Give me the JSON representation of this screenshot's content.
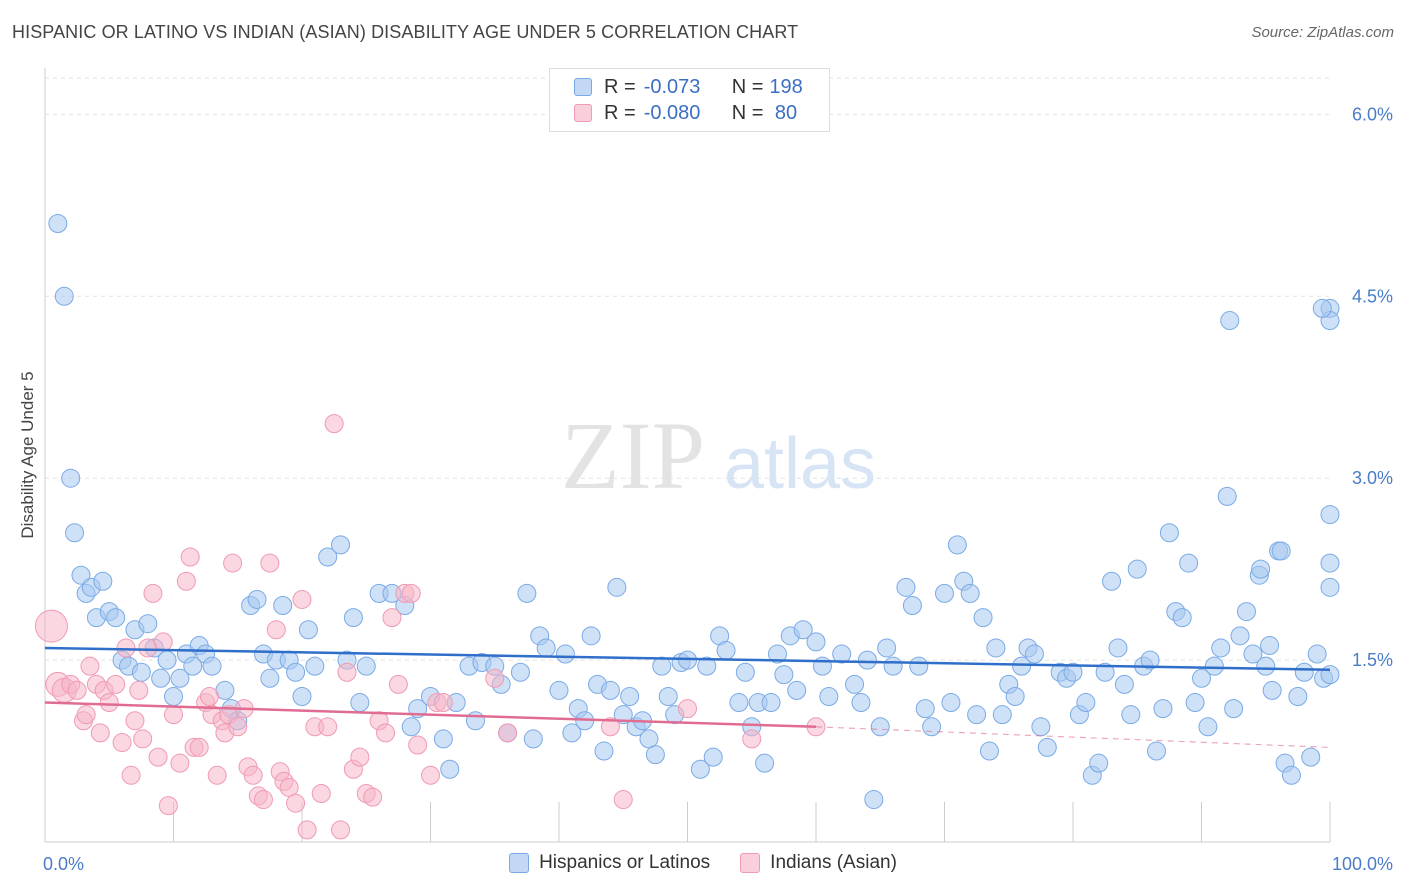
{
  "header": {
    "title": "HISPANIC OR LATINO VS INDIAN (ASIAN) DISABILITY AGE UNDER 5 CORRELATION CHART",
    "source": "Source: ZipAtlas.com"
  },
  "watermark": {
    "zip": "ZIP",
    "atlas": "atlas"
  },
  "legend": {
    "rows": [
      {
        "r_label": "R = ",
        "r_value": "-0.073",
        "n_label": "N = ",
        "n_value": "198",
        "color": "#a8c8f0"
      },
      {
        "r_label": "R = ",
        "r_value": "-0.080",
        "n_label": "N = ",
        "n_value": " 80",
        "color": "#f5b6c8"
      }
    ]
  },
  "chart_data": {
    "type": "scatter",
    "ylabel": "Disability Age Under 5",
    "xlim": [
      0,
      100
    ],
    "ylim": [
      0,
      6.0
    ],
    "x_tick_labels": [
      "0.0%",
      "100.0%"
    ],
    "y_ticks": [
      1.5,
      3.0,
      4.5,
      6.0
    ],
    "y_tick_labels": [
      "1.5%",
      "3.0%",
      "4.5%",
      "6.0%"
    ],
    "grid": true,
    "series": [
      {
        "name": "Hispanics or Latinos",
        "color": "#7aaae6",
        "fill": "#a8c8f0",
        "trend": {
          "x": [
            0,
            100
          ],
          "y": [
            1.6,
            1.42
          ],
          "line_color": "#2f6fca"
        },
        "points": [
          [
            1,
            5.1
          ],
          [
            1.5,
            4.5
          ],
          [
            2,
            3.0
          ],
          [
            2.3,
            2.55
          ],
          [
            2.8,
            2.2
          ],
          [
            3.2,
            2.05
          ],
          [
            3.6,
            2.1
          ],
          [
            4,
            1.85
          ],
          [
            4.5,
            2.15
          ],
          [
            5,
            1.9
          ],
          [
            5.5,
            1.85
          ],
          [
            6,
            1.5
          ],
          [
            6.5,
            1.45
          ],
          [
            7,
            1.75
          ],
          [
            7.5,
            1.4
          ],
          [
            8,
            1.8
          ],
          [
            8.5,
            1.6
          ],
          [
            9,
            1.35
          ],
          [
            9.5,
            1.5
          ],
          [
            10,
            1.2
          ],
          [
            10.5,
            1.35
          ],
          [
            11,
            1.55
          ],
          [
            11.5,
            1.45
          ],
          [
            12,
            1.62
          ],
          [
            12.5,
            1.55
          ],
          [
            13,
            1.45
          ],
          [
            14,
            1.25
          ],
          [
            14.5,
            1.1
          ],
          [
            15,
            1.0
          ],
          [
            16,
            1.95
          ],
          [
            16.5,
            2.0
          ],
          [
            17,
            1.55
          ],
          [
            17.5,
            1.35
          ],
          [
            18,
            1.5
          ],
          [
            18.5,
            1.95
          ],
          [
            19,
            1.5
          ],
          [
            19.5,
            1.4
          ],
          [
            20,
            1.2
          ],
          [
            20.5,
            1.75
          ],
          [
            21,
            1.45
          ],
          [
            22,
            2.35
          ],
          [
            23,
            2.45
          ],
          [
            23.5,
            1.5
          ],
          [
            24,
            1.85
          ],
          [
            24.5,
            1.15
          ],
          [
            25,
            1.45
          ],
          [
            26,
            2.05
          ],
          [
            27,
            2.05
          ],
          [
            28,
            1.95
          ],
          [
            28.5,
            0.95
          ],
          [
            29,
            1.1
          ],
          [
            30,
            1.2
          ],
          [
            31,
            0.85
          ],
          [
            31.5,
            0.6
          ],
          [
            32,
            1.15
          ],
          [
            33,
            1.45
          ],
          [
            33.5,
            1.0
          ],
          [
            34,
            1.48
          ],
          [
            35,
            1.45
          ],
          [
            35.5,
            1.3
          ],
          [
            36,
            0.9
          ],
          [
            37,
            1.4
          ],
          [
            37.5,
            2.05
          ],
          [
            38,
            0.85
          ],
          [
            38.5,
            1.7
          ],
          [
            39,
            1.6
          ],
          [
            40,
            1.25
          ],
          [
            40.5,
            1.55
          ],
          [
            41,
            0.9
          ],
          [
            41.5,
            1.1
          ],
          [
            42,
            1.0
          ],
          [
            42.5,
            1.7
          ],
          [
            43,
            1.3
          ],
          [
            43.5,
            0.75
          ],
          [
            44,
            1.25
          ],
          [
            44.5,
            2.1
          ],
          [
            45,
            1.05
          ],
          [
            45.5,
            1.2
          ],
          [
            46,
            0.95
          ],
          [
            46.5,
            1.0
          ],
          [
            47,
            0.85
          ],
          [
            47.5,
            0.72
          ],
          [
            48,
            1.45
          ],
          [
            48.5,
            1.2
          ],
          [
            49,
            1.05
          ],
          [
            49.5,
            1.48
          ],
          [
            50,
            1.5
          ],
          [
            51,
            0.6
          ],
          [
            51.5,
            1.45
          ],
          [
            52,
            0.7
          ],
          [
            52.5,
            1.7
          ],
          [
            53,
            1.58
          ],
          [
            54,
            1.15
          ],
          [
            54.5,
            1.4
          ],
          [
            55,
            0.95
          ],
          [
            55.5,
            1.15
          ],
          [
            56,
            0.65
          ],
          [
            56.5,
            1.15
          ],
          [
            57,
            1.55
          ],
          [
            57.5,
            1.38
          ],
          [
            58,
            1.7
          ],
          [
            58.5,
            1.25
          ],
          [
            59,
            1.75
          ],
          [
            60,
            1.65
          ],
          [
            60.5,
            1.45
          ],
          [
            61,
            1.2
          ],
          [
            62,
            1.55
          ],
          [
            63,
            1.3
          ],
          [
            63.5,
            1.15
          ],
          [
            64,
            1.5
          ],
          [
            64.5,
            0.35
          ],
          [
            65,
            0.95
          ],
          [
            65.5,
            1.6
          ],
          [
            66,
            1.45
          ],
          [
            67,
            2.1
          ],
          [
            67.5,
            1.95
          ],
          [
            68,
            1.45
          ],
          [
            68.5,
            1.1
          ],
          [
            69,
            0.95
          ],
          [
            70,
            2.05
          ],
          [
            70.5,
            1.15
          ],
          [
            71,
            2.45
          ],
          [
            71.5,
            2.15
          ],
          [
            72,
            2.05
          ],
          [
            72.5,
            1.05
          ],
          [
            73,
            1.85
          ],
          [
            73.5,
            0.75
          ],
          [
            74,
            1.6
          ],
          [
            74.5,
            1.05
          ],
          [
            75,
            1.3
          ],
          [
            75.5,
            1.2
          ],
          [
            76,
            1.45
          ],
          [
            76.5,
            1.6
          ],
          [
            77,
            1.55
          ],
          [
            77.5,
            0.95
          ],
          [
            78,
            0.78
          ],
          [
            79,
            1.4
          ],
          [
            79.5,
            1.35
          ],
          [
            80,
            1.4
          ],
          [
            80.5,
            1.05
          ],
          [
            81,
            1.15
          ],
          [
            81.5,
            0.55
          ],
          [
            82,
            0.65
          ],
          [
            82.5,
            1.4
          ],
          [
            83,
            2.15
          ],
          [
            83.5,
            1.6
          ],
          [
            84,
            1.3
          ],
          [
            84.5,
            1.05
          ],
          [
            85,
            2.25
          ],
          [
            85.5,
            1.45
          ],
          [
            86,
            1.5
          ],
          [
            86.5,
            0.75
          ],
          [
            87,
            1.1
          ],
          [
            87.5,
            2.55
          ],
          [
            88,
            1.9
          ],
          [
            88.5,
            1.85
          ],
          [
            89,
            2.3
          ],
          [
            89.5,
            1.15
          ],
          [
            90,
            1.35
          ],
          [
            90.5,
            0.95
          ],
          [
            91,
            1.45
          ],
          [
            91.5,
            1.6
          ],
          [
            92,
            2.85
          ],
          [
            92.5,
            1.1
          ],
          [
            93,
            1.7
          ],
          [
            93.5,
            1.9
          ],
          [
            94,
            1.55
          ],
          [
            94.5,
            2.2
          ],
          [
            95,
            1.45
          ],
          [
            95.5,
            1.25
          ],
          [
            96,
            2.4
          ],
          [
            96.5,
            0.65
          ],
          [
            97,
            0.55
          ],
          [
            97.5,
            1.2
          ],
          [
            98,
            1.4
          ],
          [
            98.5,
            0.7
          ],
          [
            99,
            1.55
          ],
          [
            99.5,
            1.35
          ],
          [
            100,
            2.1
          ],
          [
            100.5,
            2.3
          ],
          [
            101,
            1.38
          ],
          [
            101.5,
            2.7
          ],
          [
            102,
            4.4
          ],
          [
            103,
            4.3
          ],
          [
            92.2,
            4.3
          ],
          [
            99.4,
            4.4
          ],
          [
            96.2,
            2.4
          ],
          [
            95.3,
            1.62
          ],
          [
            94.6,
            2.25
          ]
        ]
      },
      {
        "name": "Indians (Asian)",
        "color": "#f09ab4",
        "fill": "#f5b6c8",
        "trend": {
          "x": [
            0,
            60
          ],
          "y": [
            1.15,
            0.95
          ],
          "line_color": "#e06c92",
          "dashed_to": [
            100,
            0.78
          ]
        },
        "points": [
          [
            0.5,
            1.78
          ],
          [
            1,
            1.3
          ],
          [
            1.5,
            1.25
          ],
          [
            2,
            1.3
          ],
          [
            2.5,
            1.25
          ],
          [
            3,
            1.0
          ],
          [
            3.2,
            1.05
          ],
          [
            3.5,
            1.45
          ],
          [
            4,
            1.3
          ],
          [
            4.3,
            0.9
          ],
          [
            4.6,
            1.25
          ],
          [
            5,
            1.15
          ],
          [
            5.5,
            1.3
          ],
          [
            6,
            0.82
          ],
          [
            6.3,
            1.6
          ],
          [
            6.7,
            0.55
          ],
          [
            7,
            1.0
          ],
          [
            7.3,
            1.25
          ],
          [
            7.6,
            0.85
          ],
          [
            8,
            1.6
          ],
          [
            8.4,
            2.05
          ],
          [
            8.8,
            0.7
          ],
          [
            9.2,
            1.65
          ],
          [
            9.6,
            0.3
          ],
          [
            10,
            1.05
          ],
          [
            10.5,
            0.65
          ],
          [
            11,
            2.15
          ],
          [
            11.3,
            2.35
          ],
          [
            11.6,
            0.78
          ],
          [
            12,
            0.78
          ],
          [
            12.5,
            1.15
          ],
          [
            12.8,
            1.2
          ],
          [
            13,
            1.05
          ],
          [
            13.4,
            0.55
          ],
          [
            13.8,
            1.0
          ],
          [
            14,
            0.9
          ],
          [
            14.3,
            1.05
          ],
          [
            14.6,
            2.3
          ],
          [
            15,
            0.95
          ],
          [
            15.5,
            1.1
          ],
          [
            15.8,
            0.62
          ],
          [
            16.2,
            0.55
          ],
          [
            16.6,
            0.38
          ],
          [
            17,
            0.35
          ],
          [
            17.5,
            2.3
          ],
          [
            18,
            1.75
          ],
          [
            18.3,
            0.58
          ],
          [
            18.6,
            0.5
          ],
          [
            19,
            0.45
          ],
          [
            19.5,
            0.32
          ],
          [
            20,
            2.0
          ],
          [
            20.4,
            0.1
          ],
          [
            21,
            0.95
          ],
          [
            21.5,
            0.4
          ],
          [
            22,
            0.95
          ],
          [
            22.5,
            3.45
          ],
          [
            23,
            0.1
          ],
          [
            23.5,
            1.4
          ],
          [
            24,
            0.6
          ],
          [
            24.5,
            0.7
          ],
          [
            25,
            0.4
          ],
          [
            25.5,
            0.37
          ],
          [
            26,
            1.0
          ],
          [
            26.5,
            0.9
          ],
          [
            27,
            1.85
          ],
          [
            27.5,
            1.3
          ],
          [
            28,
            2.05
          ],
          [
            28.5,
            2.05
          ],
          [
            29,
            0.8
          ],
          [
            30,
            0.55
          ],
          [
            30.5,
            1.15
          ],
          [
            31,
            1.15
          ],
          [
            35,
            1.35
          ],
          [
            36,
            0.9
          ],
          [
            44,
            0.95
          ],
          [
            45,
            0.35
          ],
          [
            50,
            1.1
          ],
          [
            55,
            0.85
          ],
          [
            60,
            0.95
          ]
        ]
      }
    ]
  },
  "bottom_legend": [
    {
      "label": "Hispanics or Latinos",
      "color": "#a8c8f0",
      "border": "#7aaae6"
    },
    {
      "label": "Indians (Asian)",
      "color": "#f5b6c8",
      "border": "#f09ab4"
    }
  ]
}
